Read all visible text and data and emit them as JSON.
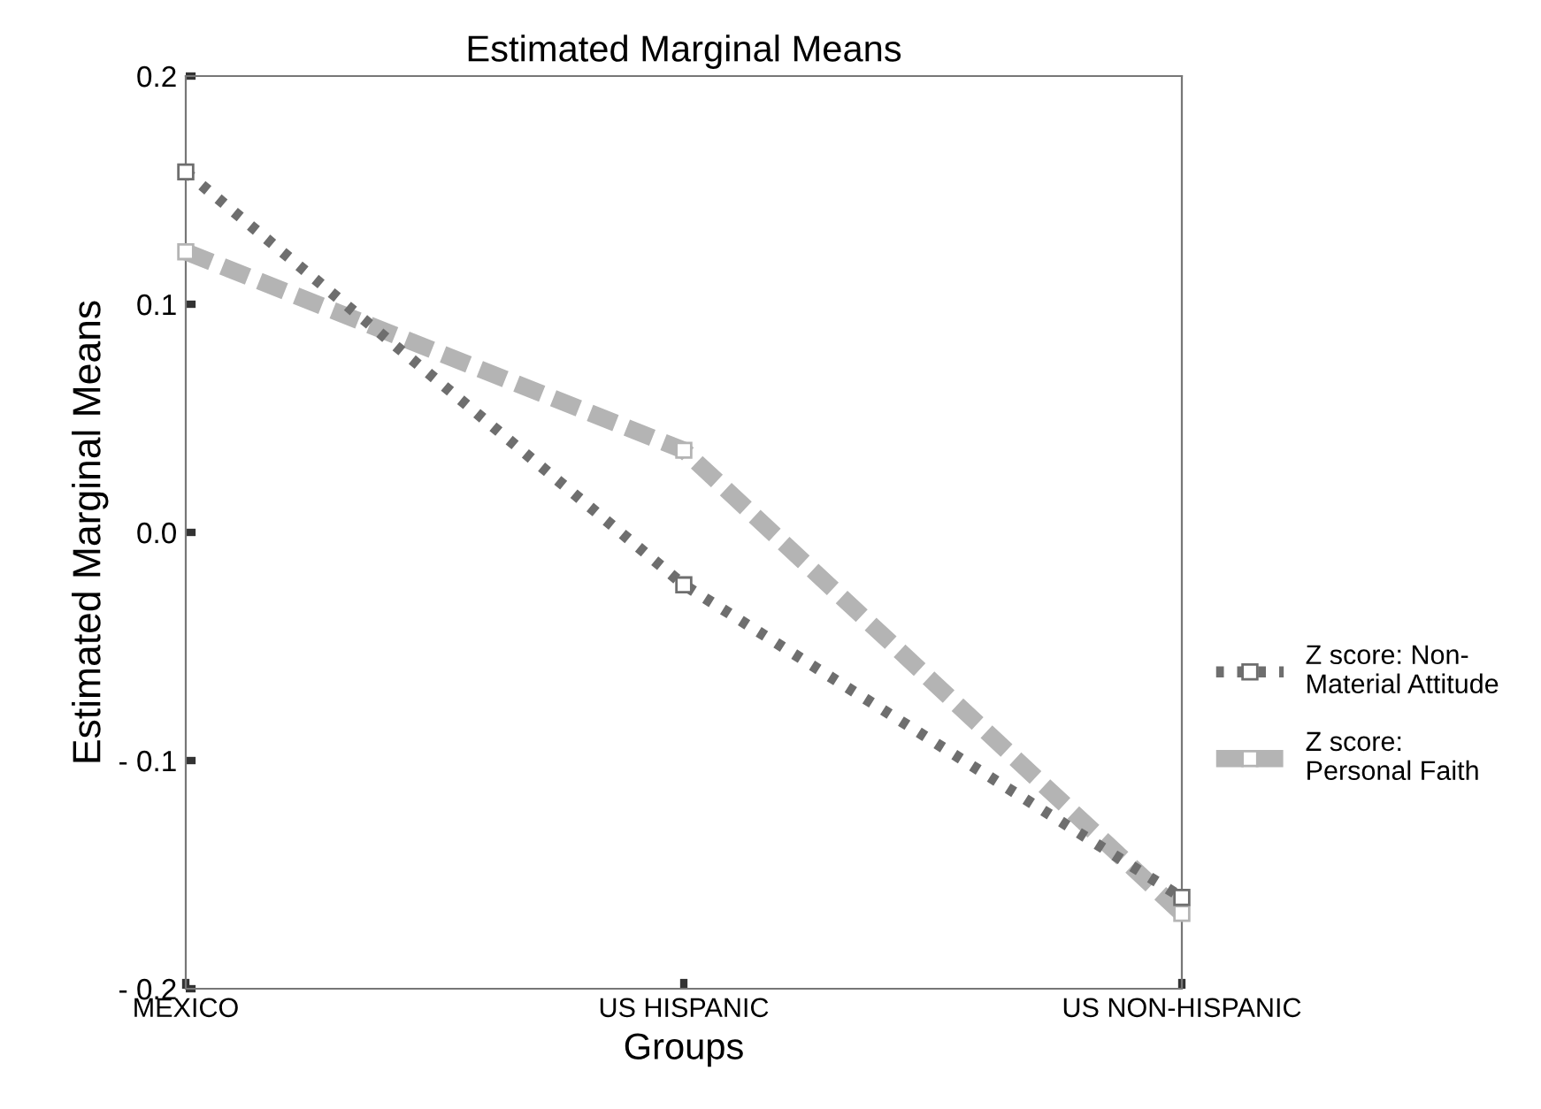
{
  "chart_data": {
    "type": "line",
    "title": "Estimated Marginal Means",
    "xlabel": "Groups",
    "ylabel": "Estimated Marginal Means",
    "categories": [
      "MEXICO",
      "US HISPANIC",
      "US NON-HISPANIC"
    ],
    "series": [
      {
        "name": "Z score: Non-\nMaterial Attitude",
        "color": "#6e6e6e",
        "line_style": "dotted",
        "values": [
          0.158,
          -0.023,
          -0.16
        ]
      },
      {
        "name": "Z score:\nPersonal Faith",
        "color": "#b4b4b4",
        "line_style": "dashed",
        "values": [
          0.123,
          0.036,
          -0.167
        ]
      }
    ],
    "ylim": [
      -0.2,
      0.2
    ],
    "yticks": [
      {
        "value": -0.2,
        "label": "- 0.2"
      },
      {
        "value": -0.1,
        "label": "- 0.1"
      },
      {
        "value": 0.0,
        "label": "0.0"
      },
      {
        "value": 0.1,
        "label": "0.1"
      },
      {
        "value": 0.2,
        "label": "0.2"
      }
    ],
    "marker": "square",
    "grid": false,
    "legend": "right"
  }
}
